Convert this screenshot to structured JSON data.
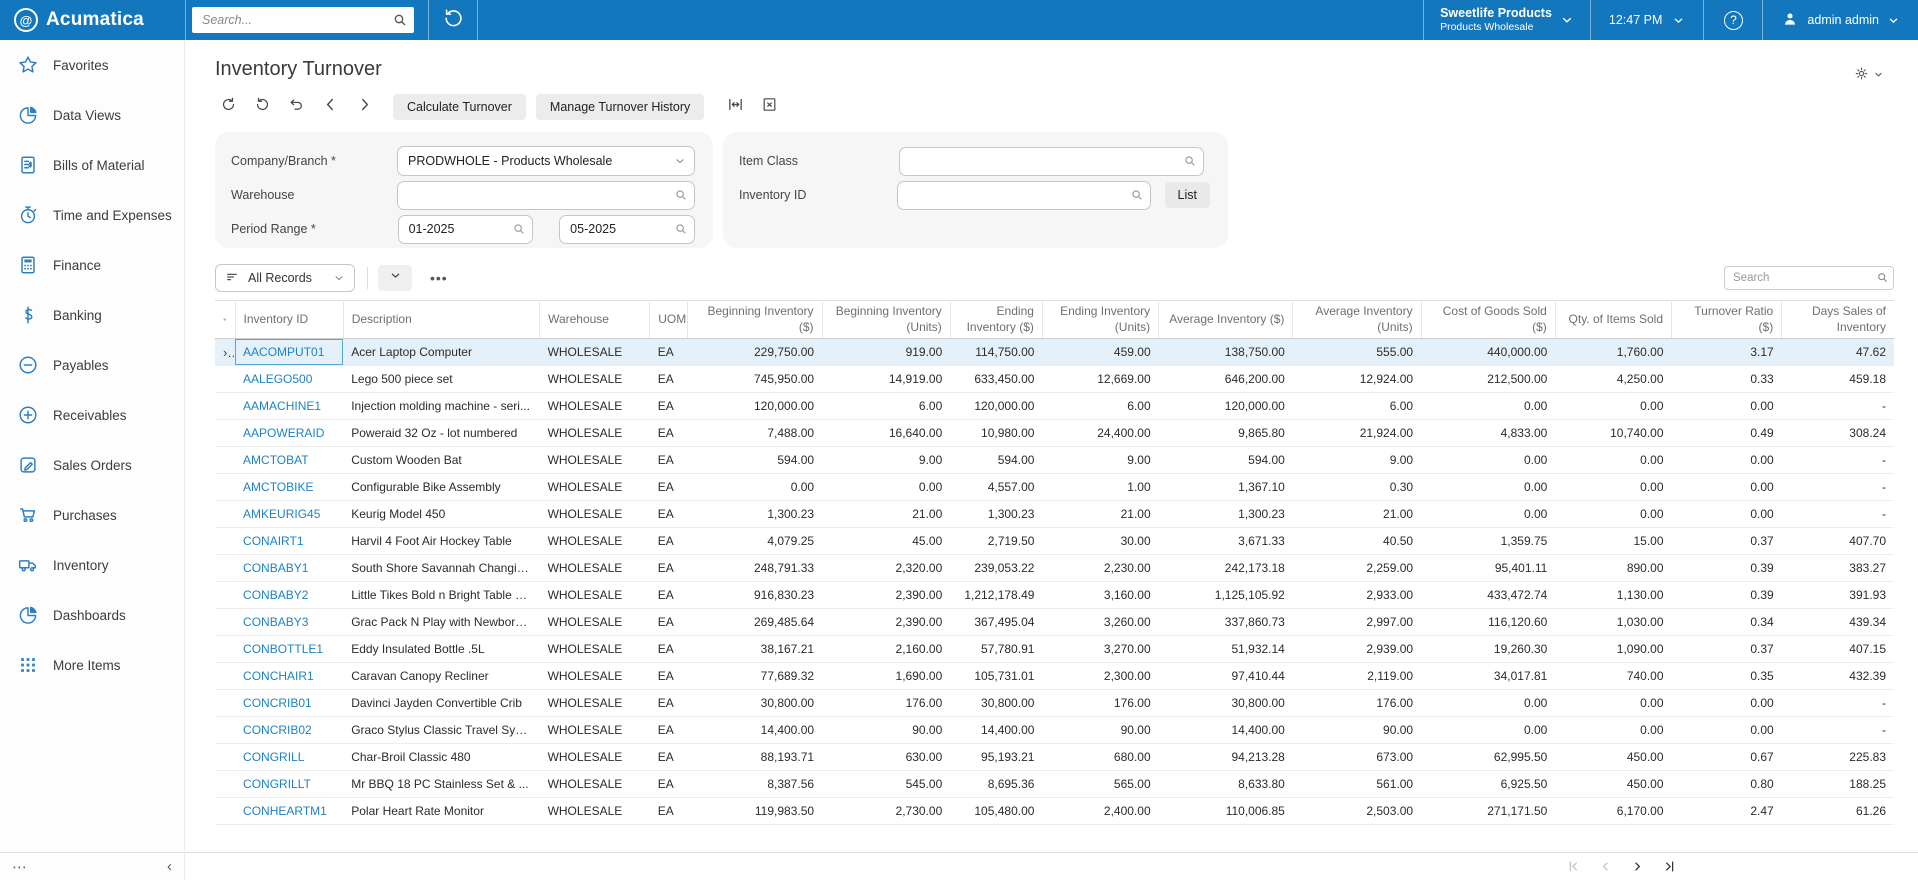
{
  "topbar": {
    "brand": "Acumatica",
    "search_placeholder": "Search...",
    "company_name": "Sweetlife Products",
    "company_branch": "Products Wholesale",
    "time": "12:47 PM",
    "user_name": "admin admin"
  },
  "sidebar": {
    "items": [
      {
        "label": "Favorites",
        "icon": "star-icon"
      },
      {
        "label": "Data Views",
        "icon": "pie-chart-icon"
      },
      {
        "label": "Bills of Material",
        "icon": "bill-icon"
      },
      {
        "label": "Time and Expenses",
        "icon": "stopwatch-icon"
      },
      {
        "label": "Finance",
        "icon": "calculator-icon"
      },
      {
        "label": "Banking",
        "icon": "dollar-icon"
      },
      {
        "label": "Payables",
        "icon": "minus-circle-icon"
      },
      {
        "label": "Receivables",
        "icon": "plus-circle-icon"
      },
      {
        "label": "Sales Orders",
        "icon": "edit-icon"
      },
      {
        "label": "Purchases",
        "icon": "cart-icon"
      },
      {
        "label": "Inventory",
        "icon": "truck-icon"
      },
      {
        "label": "Dashboards",
        "icon": "pie-chart-icon"
      },
      {
        "label": "More Items",
        "icon": "grid-dots-icon"
      }
    ]
  },
  "page": {
    "title": "Inventory Turnover",
    "buttons": {
      "calculate": "Calculate Turnover",
      "manage": "Manage Turnover History"
    }
  },
  "filters": {
    "company_branch_label": "Company/Branch *",
    "company_branch_value": "PRODWHOLE - Products Wholesale",
    "warehouse_label": "Warehouse",
    "warehouse_value": "",
    "period_range_label": "Period Range *",
    "period_from": "01-2025",
    "period_to": "05-2025",
    "item_class_label": "Item Class",
    "item_class_value": "",
    "inventory_id_label": "Inventory ID",
    "inventory_id_value": "",
    "list_button": "List"
  },
  "grid": {
    "records_filter": "All Records",
    "search_placeholder": "Search",
    "columns": [
      "",
      "Inventory ID",
      "Description",
      "Warehouse",
      "UOM",
      "Beginning Inventory ($)",
      "Beginning Inventory (Units)",
      "Ending Inventory ($)",
      "Ending Inventory (Units)",
      "Average Inventory ($)",
      "Average Inventory (Units)",
      "Cost of Goods Sold ($)",
      "Qty. of Items Sold",
      "Turnover Ratio ($)",
      "Days Sales of Inventory"
    ],
    "rows": [
      {
        "selected": true,
        "id": "AACOMPUT01",
        "description": "Acer Laptop Computer",
        "warehouse": "WHOLESALE",
        "uom": "EA",
        "values": [
          "229,750.00",
          "919.00",
          "114,750.00",
          "459.00",
          "138,750.00",
          "555.00",
          "440,000.00",
          "1,760.00",
          "3.17",
          "47.62"
        ]
      },
      {
        "selected": false,
        "id": "AALEGO500",
        "description": "Lego 500 piece set",
        "warehouse": "WHOLESALE",
        "uom": "EA",
        "values": [
          "745,950.00",
          "14,919.00",
          "633,450.00",
          "12,669.00",
          "646,200.00",
          "12,924.00",
          "212,500.00",
          "4,250.00",
          "0.33",
          "459.18"
        ]
      },
      {
        "selected": false,
        "id": "AAMACHINE1",
        "description": "Injection molding machine - seri...",
        "warehouse": "WHOLESALE",
        "uom": "EA",
        "values": [
          "120,000.00",
          "6.00",
          "120,000.00",
          "6.00",
          "120,000.00",
          "6.00",
          "0.00",
          "0.00",
          "0.00",
          "-"
        ]
      },
      {
        "selected": false,
        "id": "AAPOWERAID",
        "description": "Poweraid 32 Oz - lot numbered",
        "warehouse": "WHOLESALE",
        "uom": "EA",
        "values": [
          "7,488.00",
          "16,640.00",
          "10,980.00",
          "24,400.00",
          "9,865.80",
          "21,924.00",
          "4,833.00",
          "10,740.00",
          "0.49",
          "308.24"
        ]
      },
      {
        "selected": false,
        "id": "AMCTOBAT",
        "description": "Custom Wooden Bat",
        "warehouse": "WHOLESALE",
        "uom": "EA",
        "values": [
          "594.00",
          "9.00",
          "594.00",
          "9.00",
          "594.00",
          "9.00",
          "0.00",
          "0.00",
          "0.00",
          "-"
        ]
      },
      {
        "selected": false,
        "id": "AMCTOBIKE",
        "description": "Configurable Bike Assembly",
        "warehouse": "WHOLESALE",
        "uom": "EA",
        "values": [
          "0.00",
          "0.00",
          "4,557.00",
          "1.00",
          "1,367.10",
          "0.30",
          "0.00",
          "0.00",
          "0.00",
          "-"
        ]
      },
      {
        "selected": false,
        "id": "AMKEURIG45",
        "description": "Keurig Model 450",
        "warehouse": "WHOLESALE",
        "uom": "EA",
        "values": [
          "1,300.23",
          "21.00",
          "1,300.23",
          "21.00",
          "1,300.23",
          "21.00",
          "0.00",
          "0.00",
          "0.00",
          "-"
        ]
      },
      {
        "selected": false,
        "id": "CONAIRT1",
        "description": "Harvil 4 Foot Air Hockey Table",
        "warehouse": "WHOLESALE",
        "uom": "EA",
        "values": [
          "4,079.25",
          "45.00",
          "2,719.50",
          "30.00",
          "3,671.33",
          "40.50",
          "1,359.75",
          "15.00",
          "0.37",
          "407.70"
        ]
      },
      {
        "selected": false,
        "id": "CONBABY1",
        "description": "South Shore Savannah Changin...",
        "warehouse": "WHOLESALE",
        "uom": "EA",
        "values": [
          "248,791.33",
          "2,320.00",
          "239,053.22",
          "2,230.00",
          "242,173.18",
          "2,259.00",
          "95,401.11",
          "890.00",
          "0.39",
          "383.27"
        ]
      },
      {
        "selected": false,
        "id": "CONBABY2",
        "description": "Little Tikes Bold n Bright Table &...",
        "warehouse": "WHOLESALE",
        "uom": "EA",
        "values": [
          "916,830.23",
          "2,390.00",
          "1,212,178.49",
          "3,160.00",
          "1,125,105.92",
          "2,933.00",
          "433,472.74",
          "1,130.00",
          "0.39",
          "391.93"
        ]
      },
      {
        "selected": false,
        "id": "CONBABY3",
        "description": "Grac Pack N Play with Newborn...",
        "warehouse": "WHOLESALE",
        "uom": "EA",
        "values": [
          "269,485.64",
          "2,390.00",
          "367,495.04",
          "3,260.00",
          "337,860.73",
          "2,997.00",
          "116,120.60",
          "1,030.00",
          "0.34",
          "439.34"
        ]
      },
      {
        "selected": false,
        "id": "CONBOTTLE1",
        "description": "Eddy Insulated Bottle .5L",
        "warehouse": "WHOLESALE",
        "uom": "EA",
        "values": [
          "38,167.21",
          "2,160.00",
          "57,780.91",
          "3,270.00",
          "51,932.14",
          "2,939.00",
          "19,260.30",
          "1,090.00",
          "0.37",
          "407.15"
        ]
      },
      {
        "selected": false,
        "id": "CONCHAIR1",
        "description": "Caravan Canopy Recliner",
        "warehouse": "WHOLESALE",
        "uom": "EA",
        "values": [
          "77,689.32",
          "1,690.00",
          "105,731.01",
          "2,300.00",
          "97,410.44",
          "2,119.00",
          "34,017.81",
          "740.00",
          "0.35",
          "432.39"
        ]
      },
      {
        "selected": false,
        "id": "CONCRIB01",
        "description": "Davinci Jayden Convertible Crib",
        "warehouse": "WHOLESALE",
        "uom": "EA",
        "values": [
          "30,800.00",
          "176.00",
          "30,800.00",
          "176.00",
          "30,800.00",
          "176.00",
          "0.00",
          "0.00",
          "0.00",
          "-"
        ]
      },
      {
        "selected": false,
        "id": "CONCRIB02",
        "description": "Graco Stylus Classic Travel Syst...",
        "warehouse": "WHOLESALE",
        "uom": "EA",
        "values": [
          "14,400.00",
          "90.00",
          "14,400.00",
          "90.00",
          "14,400.00",
          "90.00",
          "0.00",
          "0.00",
          "0.00",
          "-"
        ]
      },
      {
        "selected": false,
        "id": "CONGRILL",
        "description": "Char-Broil Classic 480",
        "warehouse": "WHOLESALE",
        "uom": "EA",
        "values": [
          "88,193.71",
          "630.00",
          "95,193.21",
          "680.00",
          "94,213.28",
          "673.00",
          "62,995.50",
          "450.00",
          "0.67",
          "225.83"
        ]
      },
      {
        "selected": false,
        "id": "CONGRILLT",
        "description": "Mr BBQ 18 PC Stainless Set & ...",
        "warehouse": "WHOLESALE",
        "uom": "EA",
        "values": [
          "8,387.56",
          "545.00",
          "8,695.36",
          "565.00",
          "8,633.80",
          "561.00",
          "6,925.50",
          "450.00",
          "0.80",
          "188.25"
        ]
      },
      {
        "selected": false,
        "id": "CONHEARTM1",
        "description": "Polar Heart Rate Monitor",
        "warehouse": "WHOLESALE",
        "uom": "EA",
        "values": [
          "119,983.50",
          "2,730.00",
          "105,480.00",
          "2,400.00",
          "110,006.85",
          "2,503.00",
          "271,171.50",
          "6,170.00",
          "2.47",
          "61.26"
        ]
      }
    ]
  },
  "colors": {
    "topbar_blue": "#1377BD",
    "link_blue": "#1E82C4",
    "sidebar_icon_blue": "#2E7FC0",
    "selected_row_bg": "#E4F1FB"
  }
}
